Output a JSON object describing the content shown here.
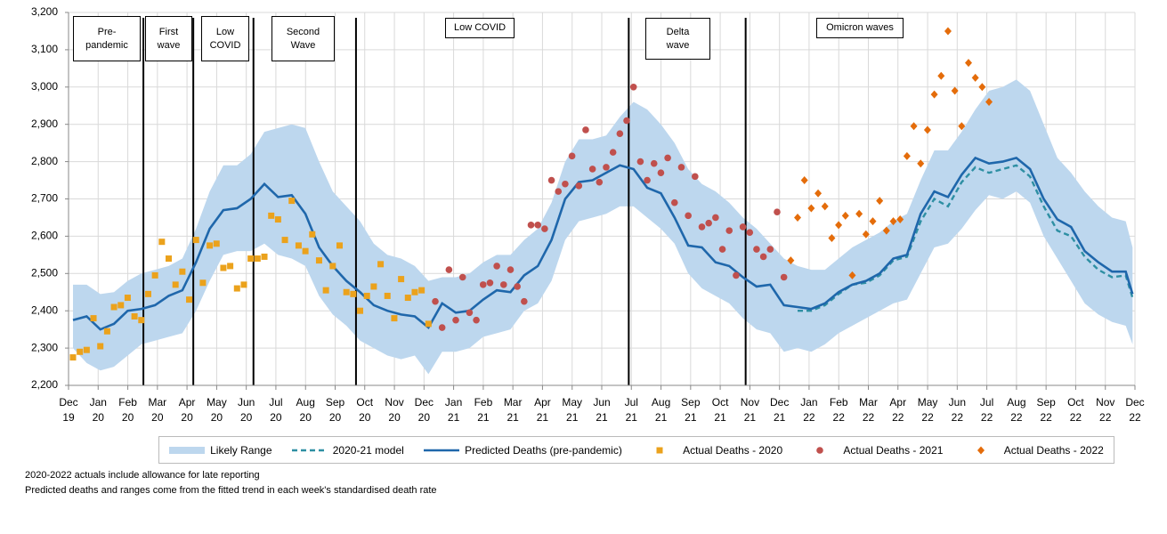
{
  "chart_data": {
    "type": "line",
    "xlim": [
      -0.65,
      155.35
    ],
    "xticks": [
      {
        "value": -0.65,
        "label": "Dec 19"
      },
      {
        "value": 3.68,
        "label": "Jan 20"
      },
      {
        "value": 8.02,
        "label": "Feb 20"
      },
      {
        "value": 12.35,
        "label": "Mar 20"
      },
      {
        "value": 16.68,
        "label": "Apr 20"
      },
      {
        "value": 21.02,
        "label": "May 20"
      },
      {
        "value": 25.35,
        "label": "Jun 20"
      },
      {
        "value": 29.68,
        "label": "Jul 20"
      },
      {
        "value": 34.02,
        "label": "Aug 20"
      },
      {
        "value": 38.35,
        "label": "Sep 20"
      },
      {
        "value": 42.68,
        "label": "Oct 20"
      },
      {
        "value": 47.02,
        "label": "Nov 20"
      },
      {
        "value": 51.35,
        "label": "Dec 20"
      },
      {
        "value": 55.68,
        "label": "Jan 21"
      },
      {
        "value": 60.02,
        "label": "Feb 21"
      },
      {
        "value": 64.35,
        "label": "Mar 21"
      },
      {
        "value": 68.68,
        "label": "Apr 21"
      },
      {
        "value": 73.02,
        "label": "May 21"
      },
      {
        "value": 77.35,
        "label": "Jun 21"
      },
      {
        "value": 81.68,
        "label": "Jul 21"
      },
      {
        "value": 86.02,
        "label": "Aug 21"
      },
      {
        "value": 90.35,
        "label": "Sep 21"
      },
      {
        "value": 94.68,
        "label": "Oct 21"
      },
      {
        "value": 99.02,
        "label": "Nov 21"
      },
      {
        "value": 103.35,
        "label": "Dec 21"
      },
      {
        "value": 107.68,
        "label": "Jan 22"
      },
      {
        "value": 112.02,
        "label": "Feb 22"
      },
      {
        "value": 116.35,
        "label": "Mar 22"
      },
      {
        "value": 120.68,
        "label": "Apr 22"
      },
      {
        "value": 125.02,
        "label": "May 22"
      },
      {
        "value": 129.35,
        "label": "Jun 22"
      },
      {
        "value": 133.68,
        "label": "Jul 22"
      },
      {
        "value": 138.02,
        "label": "Aug 22"
      },
      {
        "value": 142.35,
        "label": "Sep 22"
      },
      {
        "value": 146.68,
        "label": "Oct 22"
      },
      {
        "value": 151.02,
        "label": "Nov 22"
      },
      {
        "value": 155.35,
        "label": "Dec 22"
      }
    ],
    "ylim": [
      2200,
      3200
    ],
    "yticks": [
      {
        "value": 2200,
        "label": "2,200"
      },
      {
        "value": 2300,
        "label": "2,300"
      },
      {
        "value": 2400,
        "label": "2,400"
      },
      {
        "value": 2500,
        "label": "2,500"
      },
      {
        "value": 2600,
        "label": "2,600"
      },
      {
        "value": 2700,
        "label": "2,700"
      },
      {
        "value": 2800,
        "label": "2,800"
      },
      {
        "value": 2900,
        "label": "2,900"
      },
      {
        "value": 3000,
        "label": "3,000"
      },
      {
        "value": 3100,
        "label": "3,100"
      },
      {
        "value": 3200,
        "label": "3,200"
      }
    ],
    "grid": true,
    "vlines": [
      10.3,
      17.6,
      26.4,
      41.4,
      81.3,
      98.4
    ],
    "annotations": [
      "Pre-pandemic",
      "First wave",
      "Low COVID",
      "Second Wave",
      "Low COVID",
      "Delta wave",
      "Omicron waves"
    ],
    "series": [
      {
        "name": "Likely Range",
        "style": "band",
        "color": "#bdd7ee",
        "x": [
          0,
          2,
          4,
          6,
          8,
          10,
          12,
          14,
          16,
          18,
          20,
          22,
          24,
          26,
          28,
          30,
          32,
          34,
          36,
          38,
          40,
          42,
          44,
          46,
          48,
          50,
          52,
          54,
          56,
          58,
          60,
          62,
          64,
          66,
          68,
          70,
          72,
          74,
          76,
          78,
          80,
          82,
          84,
          86,
          88,
          90,
          92,
          94,
          96,
          98,
          100,
          102,
          104,
          106,
          108,
          110,
          112,
          114,
          116,
          118,
          120,
          122,
          124,
          126,
          128,
          130,
          132,
          134,
          136,
          138,
          140,
          142,
          144,
          146,
          148,
          150,
          152,
          154,
          155
        ],
        "upper": [
          2470,
          2470,
          2445,
          2450,
          2480,
          2500,
          2510,
          2520,
          2540,
          2620,
          2720,
          2790,
          2790,
          2820,
          2880,
          2890,
          2900,
          2890,
          2800,
          2720,
          2680,
          2640,
          2580,
          2550,
          2540,
          2520,
          2480,
          2490,
          2490,
          2500,
          2530,
          2550,
          2550,
          2590,
          2620,
          2690,
          2800,
          2860,
          2860,
          2870,
          2920,
          2960,
          2940,
          2900,
          2850,
          2780,
          2740,
          2720,
          2690,
          2650,
          2620,
          2580,
          2540,
          2520,
          2510,
          2510,
          2540,
          2570,
          2590,
          2610,
          2640,
          2660,
          2750,
          2830,
          2830,
          2880,
          2940,
          2990,
          3000,
          3020,
          2990,
          2900,
          2810,
          2770,
          2720,
          2680,
          2650,
          2640,
          2570
        ],
        "lower": [
          2300,
          2260,
          2240,
          2250,
          2280,
          2310,
          2320,
          2330,
          2340,
          2400,
          2480,
          2550,
          2560,
          2560,
          2580,
          2550,
          2540,
          2520,
          2440,
          2390,
          2360,
          2320,
          2300,
          2280,
          2270,
          2280,
          2230,
          2290,
          2290,
          2300,
          2330,
          2340,
          2350,
          2400,
          2420,
          2480,
          2590,
          2640,
          2650,
          2660,
          2680,
          2680,
          2650,
          2620,
          2580,
          2500,
          2460,
          2440,
          2420,
          2380,
          2350,
          2340,
          2290,
          2300,
          2290,
          2310,
          2340,
          2360,
          2380,
          2400,
          2420,
          2430,
          2500,
          2570,
          2580,
          2620,
          2670,
          2710,
          2700,
          2720,
          2690,
          2600,
          2540,
          2480,
          2420,
          2390,
          2370,
          2360,
          2310
        ]
      },
      {
        "name": "2020-21 model",
        "style": "dashed",
        "color": "#2e8fa3",
        "x": [
          106,
          108,
          110,
          112,
          114,
          116,
          118,
          120,
          122,
          124,
          126,
          128,
          130,
          132,
          134,
          136,
          138,
          140,
          142,
          144,
          146,
          148,
          150,
          152,
          154,
          155
        ],
        "values": [
          2400,
          2400,
          2415,
          2445,
          2470,
          2475,
          2495,
          2535,
          2545,
          2640,
          2700,
          2680,
          2745,
          2785,
          2770,
          2780,
          2790,
          2760,
          2680,
          2615,
          2600,
          2545,
          2510,
          2490,
          2495,
          2435
        ]
      },
      {
        "name": "Predicted Deaths (pre-pandemic)",
        "style": "solid",
        "color": "#1f67ab",
        "x": [
          0,
          2,
          4,
          6,
          8,
          10,
          12,
          14,
          16,
          18,
          20,
          22,
          24,
          26,
          28,
          30,
          32,
          34,
          36,
          38,
          40,
          42,
          44,
          46,
          48,
          50,
          52,
          54,
          56,
          58,
          60,
          62,
          64,
          66,
          68,
          70,
          72,
          74,
          76,
          78,
          80,
          82,
          84,
          86,
          88,
          90,
          92,
          94,
          96,
          98,
          100,
          102,
          104,
          106,
          108,
          110,
          112,
          114,
          116,
          118,
          120,
          122,
          124,
          126,
          128,
          130,
          132,
          134,
          136,
          138,
          140,
          142,
          144,
          146,
          148,
          150,
          152,
          154,
          155
        ],
        "values": [
          2375,
          2385,
          2350,
          2365,
          2400,
          2405,
          2415,
          2440,
          2455,
          2530,
          2620,
          2670,
          2675,
          2700,
          2740,
          2705,
          2710,
          2660,
          2570,
          2520,
          2480,
          2450,
          2415,
          2400,
          2390,
          2385,
          2355,
          2420,
          2395,
          2400,
          2430,
          2455,
          2450,
          2495,
          2520,
          2590,
          2700,
          2745,
          2750,
          2770,
          2790,
          2780,
          2730,
          2715,
          2650,
          2575,
          2570,
          2530,
          2520,
          2490,
          2465,
          2470,
          2415,
          2410,
          2405,
          2420,
          2450,
          2470,
          2480,
          2500,
          2540,
          2550,
          2660,
          2720,
          2705,
          2765,
          2810,
          2795,
          2800,
          2810,
          2780,
          2700,
          2645,
          2625,
          2560,
          2530,
          2505,
          2505,
          2445
        ]
      },
      {
        "name": "Actual Deaths - 2020",
        "style": "square",
        "color": "#eba21c",
        "x": [
          0,
          1,
          2,
          3,
          4,
          5,
          6,
          7,
          8,
          9,
          10,
          11,
          12,
          13,
          14,
          15,
          16,
          17,
          18,
          19,
          20,
          21,
          22,
          23,
          24,
          25,
          26,
          27,
          28,
          29,
          30,
          31,
          32,
          33,
          34,
          35,
          36,
          37,
          38,
          39,
          40,
          41,
          42,
          43,
          44,
          45,
          46,
          47,
          48,
          49,
          50,
          51,
          52
        ],
        "values": [
          2275,
          2290,
          2295,
          2380,
          2305,
          2345,
          2410,
          2415,
          2435,
          2385,
          2375,
          2445,
          2495,
          2585,
          2540,
          2470,
          2505,
          2430,
          2590,
          2475,
          2575,
          2580,
          2515,
          2520,
          2460,
          2470,
          2540,
          2540,
          2545,
          2655,
          2645,
          2590,
          2695,
          2575,
          2560,
          2605,
          2535,
          2455,
          2520,
          2575,
          2450,
          2445,
          2400,
          2440,
          2465,
          2525,
          2440,
          2380,
          2485,
          2435,
          2450,
          2455,
          2365
        ]
      },
      {
        "name": "Actual Deaths - 2021",
        "style": "circle",
        "color": "#c0504d",
        "x": [
          53,
          54,
          55,
          56,
          57,
          58,
          59,
          60,
          61,
          62,
          63,
          64,
          65,
          66,
          67,
          68,
          69,
          70,
          71,
          72,
          73,
          74,
          75,
          76,
          77,
          78,
          79,
          80,
          81,
          82,
          83,
          84,
          85,
          86,
          87,
          88,
          89,
          90,
          91,
          92,
          93,
          94,
          95,
          96,
          97,
          98,
          99,
          100,
          101,
          102,
          103,
          104
        ],
        "values": [
          2425,
          2355,
          2510,
          2375,
          2490,
          2395,
          2375,
          2470,
          2475,
          2520,
          2470,
          2510,
          2465,
          2425,
          2630,
          2630,
          2620,
          2750,
          2720,
          2740,
          2815,
          2735,
          2885,
          2780,
          2745,
          2785,
          2825,
          2875,
          2910,
          3000,
          2800,
          2750,
          2795,
          2770,
          2810,
          2690,
          2785,
          2655,
          2760,
          2625,
          2635,
          2650,
          2565,
          2615,
          2495,
          2625,
          2610,
          2565,
          2545,
          2565,
          2665,
          2490
        ]
      },
      {
        "name": "Actual Deaths - 2022",
        "style": "diamond",
        "color": "#e46c0a",
        "x": [
          105,
          106,
          107,
          108,
          109,
          110,
          111,
          112,
          113,
          114,
          115,
          116,
          117,
          118,
          119,
          120,
          121,
          122,
          123,
          124,
          125,
          126,
          127,
          128,
          129,
          130,
          131,
          132,
          133,
          134
        ],
        "values": [
          2535,
          2650,
          2750,
          2675,
          2715,
          2680,
          2595,
          2630,
          2655,
          2495,
          2660,
          2605,
          2640,
          2695,
          2615,
          2640,
          2645,
          2815,
          2895,
          2795,
          2885,
          2980,
          3030,
          3150,
          2990,
          2895,
          3065,
          3025,
          3000,
          2960
        ]
      }
    ],
    "notes": [
      "2020-2022 actuals include allowance for late reporting",
      "Predicted deaths and ranges come from the fitted trend in each week's standardised death rate"
    ]
  }
}
